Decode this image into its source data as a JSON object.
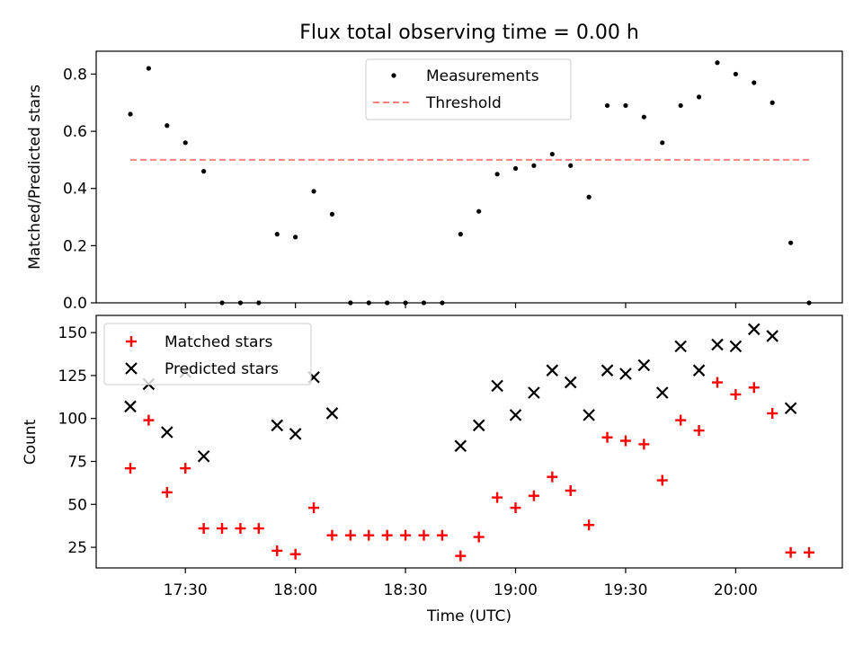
{
  "colors": {
    "measurement": "#000000",
    "threshold": "#ff7f7f",
    "matched": "#ff0000",
    "predicted": "#000000"
  },
  "chart_data": [
    {
      "type": "scatter",
      "title": "Flux total observing time = 0.00 h",
      "xlabel": "",
      "ylabel": "Matched/Predicted stars",
      "ylim": [
        0,
        0.88
      ],
      "yticks": [
        0.0,
        0.2,
        0.4,
        0.6,
        0.8
      ],
      "ytick_labels": [
        "0.0",
        "0.2",
        "0.4",
        "0.6",
        "0.8"
      ],
      "legend_position": "top-center",
      "grid": false,
      "series": [
        {
          "name": "Measurements",
          "marker": "dot",
          "x": [
            "17:15",
            "17:20",
            "17:25",
            "17:30",
            "17:35",
            "17:40",
            "17:45",
            "17:50",
            "17:55",
            "18:00",
            "18:05",
            "18:10",
            "18:15",
            "18:20",
            "18:25",
            "18:30",
            "18:35",
            "18:40",
            "18:45",
            "18:50",
            "18:55",
            "19:00",
            "19:05",
            "19:10",
            "19:15",
            "19:20",
            "19:25",
            "19:30",
            "19:35",
            "19:40",
            "19:45",
            "19:50",
            "19:55",
            "20:00",
            "20:05",
            "20:10",
            "20:15",
            "20:20"
          ],
          "values": [
            0.66,
            0.82,
            0.62,
            0.56,
            0.46,
            0.0,
            0.0,
            0.0,
            0.24,
            0.23,
            0.39,
            0.31,
            0.0,
            0.0,
            0.0,
            0.0,
            0.0,
            0.0,
            0.24,
            0.32,
            0.45,
            0.47,
            0.48,
            0.52,
            0.48,
            0.37,
            0.69,
            0.69,
            0.65,
            0.56,
            0.69,
            0.72,
            0.84,
            0.8,
            0.77,
            0.7,
            0.21,
            0.0
          ]
        },
        {
          "name": "Threshold",
          "marker": "dashed-line",
          "x": [
            "17:15",
            "20:20"
          ],
          "values": [
            0.5,
            0.5
          ]
        }
      ]
    },
    {
      "type": "scatter",
      "title": "",
      "xlabel": "Time (UTC)",
      "ylabel": "Count",
      "ylim": [
        13,
        160
      ],
      "yticks": [
        25,
        50,
        75,
        100,
        125,
        150
      ],
      "ytick_labels": [
        "25",
        "50",
        "75",
        "100",
        "125",
        "150"
      ],
      "xticks": [
        "17:30",
        "18:00",
        "18:30",
        "19:00",
        "19:30",
        "20:00"
      ],
      "xtick_labels": [
        "17:30",
        "18:00",
        "18:30",
        "19:00",
        "19:30",
        "20:00"
      ],
      "legend_position": "top-left",
      "grid": false,
      "series": [
        {
          "name": "Matched stars",
          "marker": "plus",
          "x": [
            "17:15",
            "17:20",
            "17:25",
            "17:30",
            "17:35",
            "17:40",
            "17:45",
            "17:50",
            "17:55",
            "18:00",
            "18:05",
            "18:10",
            "18:15",
            "18:20",
            "18:25",
            "18:30",
            "18:35",
            "18:40",
            "18:45",
            "18:50",
            "18:55",
            "19:00",
            "19:05",
            "19:10",
            "19:15",
            "19:20",
            "19:25",
            "19:30",
            "19:35",
            "19:40",
            "19:45",
            "19:50",
            "19:55",
            "20:00",
            "20:05",
            "20:10",
            "20:15",
            "20:20"
          ],
          "values": [
            71,
            99,
            57,
            71,
            36,
            36,
            36,
            36,
            23,
            21,
            48,
            32,
            32,
            32,
            32,
            32,
            32,
            32,
            20,
            31,
            54,
            48,
            55,
            66,
            58,
            38,
            89,
            87,
            85,
            64,
            99,
            93,
            121,
            114,
            118,
            103,
            22,
            22
          ]
        },
        {
          "name": "Predicted stars",
          "marker": "x",
          "x": [
            "17:15",
            "17:20",
            "17:25",
            "17:30",
            "17:35",
            "17:55",
            "18:00",
            "18:05",
            "18:10",
            "18:45",
            "18:50",
            "18:55",
            "19:00",
            "19:05",
            "19:10",
            "19:15",
            "19:20",
            "19:25",
            "19:30",
            "19:35",
            "19:40",
            "19:45",
            "19:50",
            "19:55",
            "20:00",
            "20:05",
            "20:10",
            "20:15"
          ],
          "values": [
            107,
            120,
            92,
            127,
            78,
            96,
            91,
            124,
            103,
            84,
            96,
            119,
            102,
            115,
            128,
            121,
            102,
            128,
            126,
            131,
            115,
            142,
            128,
            143,
            142,
            152,
            148,
            106
          ]
        }
      ]
    }
  ]
}
